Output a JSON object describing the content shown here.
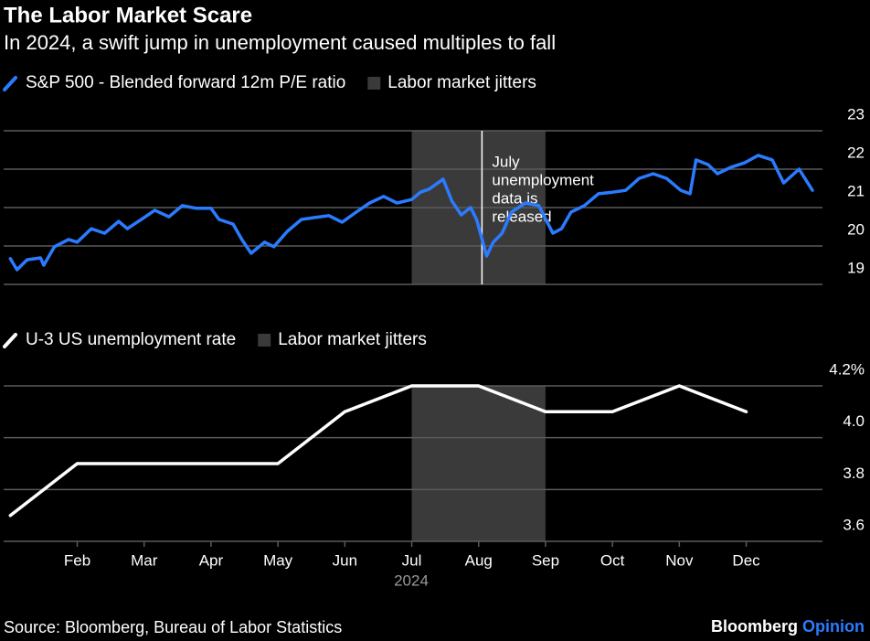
{
  "title": "The Labor Market Scare",
  "subtitle": "In 2024, a swift jump in unemployment caused multiples to fall",
  "source": "Source: Bloomberg, Bureau of Labor Statistics",
  "brand": {
    "name": "Bloomberg",
    "section": "Opinion"
  },
  "chart_data": [
    {
      "type": "line",
      "series": [
        {
          "name": "S&P 500 - Blended forward 12m P/E ratio",
          "color": "#2b7bff",
          "x": [
            1.0,
            1.1,
            1.25,
            1.45,
            1.5,
            1.66,
            1.87,
            2.0,
            2.21,
            2.41,
            2.62,
            2.75,
            3.0,
            3.16,
            3.37,
            3.57,
            3.78,
            4.0,
            4.12,
            4.33,
            4.46,
            4.6,
            4.8,
            4.94,
            5.14,
            5.35,
            5.55,
            5.76,
            5.96,
            6.17,
            6.37,
            6.58,
            6.78,
            7.0,
            7.13,
            7.26,
            7.47,
            7.6,
            7.74,
            7.88,
            7.97,
            8.12,
            8.22,
            8.35,
            8.49,
            8.7,
            8.9,
            9.11,
            9.24,
            9.38,
            9.58,
            9.79,
            10.0,
            10.2,
            10.4,
            10.61,
            10.81,
            11.02,
            11.16,
            11.25,
            11.43,
            11.57,
            11.77,
            11.98,
            12.18,
            12.39,
            12.56,
            12.79,
            12.99
          ],
          "values": [
            19.67,
            19.38,
            19.64,
            19.69,
            19.5,
            19.98,
            20.17,
            20.1,
            20.45,
            20.33,
            20.64,
            20.45,
            20.74,
            20.93,
            20.76,
            21.05,
            20.98,
            20.98,
            20.69,
            20.57,
            20.17,
            19.81,
            20.1,
            19.98,
            20.38,
            20.69,
            20.74,
            20.79,
            20.62,
            20.88,
            21.12,
            21.29,
            21.12,
            21.21,
            21.4,
            21.48,
            21.74,
            21.17,
            20.81,
            21.0,
            20.69,
            19.74,
            20.1,
            20.33,
            20.88,
            21.12,
            21.05,
            20.33,
            20.45,
            20.88,
            21.05,
            21.36,
            21.4,
            21.45,
            21.76,
            21.88,
            21.76,
            21.45,
            21.36,
            22.24,
            22.12,
            21.88,
            22.05,
            22.17,
            22.36,
            22.24,
            21.64,
            22.0,
            21.45
          ]
        }
      ],
      "highlight": {
        "name": "Labor market jitters",
        "xlim": [
          7,
          9
        ],
        "color": "#3a3a3a"
      },
      "annotation": {
        "text_lines": [
          "July",
          "unemployment",
          "data is",
          "released"
        ],
        "x": 8.05
      },
      "xlim": [
        0.9,
        13.14
      ],
      "ylim": [
        19,
        23
      ],
      "yticks": [
        19,
        20,
        21,
        22,
        23
      ],
      "grid": true
    },
    {
      "type": "line",
      "series": [
        {
          "name": "U-3 US unemployment rate",
          "color": "#ffffff",
          "x": [
            1,
            2,
            3,
            4,
            5,
            6,
            7,
            8,
            9,
            10,
            11,
            12
          ],
          "values": [
            3.7,
            3.9,
            3.9,
            3.9,
            3.9,
            4.1,
            4.2,
            4.2,
            4.1,
            4.1,
            4.2,
            4.1
          ]
        }
      ],
      "highlight": {
        "name": "Labor market jitters",
        "xlim": [
          7,
          9
        ],
        "color": "#3a3a3a"
      },
      "xlim": [
        0.9,
        13.14
      ],
      "ylim": [
        3.6,
        4.2
      ],
      "yticks": [
        3.6,
        3.8,
        {
          "value": 4.0,
          "label": "4.0"
        },
        {
          "value": 4.2,
          "label": "4.2%"
        }
      ],
      "xticks": [
        {
          "value": 2,
          "label": "Feb"
        },
        {
          "value": 3,
          "label": "Mar"
        },
        {
          "value": 4,
          "label": "Apr"
        },
        {
          "value": 5,
          "label": "May"
        },
        {
          "value": 6,
          "label": "Jun"
        },
        {
          "value": 7,
          "label": "Jul"
        },
        {
          "value": 8,
          "label": "Aug"
        },
        {
          "value": 9,
          "label": "Sep"
        },
        {
          "value": 10,
          "label": "Oct"
        },
        {
          "value": 11,
          "label": "Nov"
        },
        {
          "value": 12,
          "label": "Dec"
        }
      ],
      "x_label": "2024",
      "grid": true
    }
  ]
}
